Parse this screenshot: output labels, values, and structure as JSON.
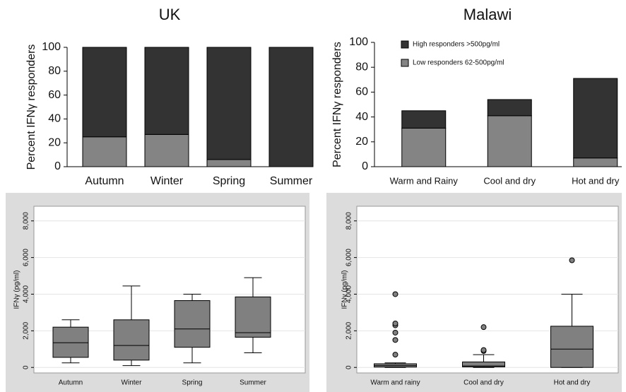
{
  "chart_data": [
    {
      "type": "stacked-bar",
      "title": "UK",
      "y_label": "Percent IFNγ responders",
      "categories": [
        "Autumn",
        "Winter",
        "Spring",
        "Summer"
      ],
      "series": [
        {
          "color": "#848484",
          "values": [
            25,
            27,
            6,
            0
          ]
        },
        {
          "color": "#333333",
          "values": [
            75,
            73,
            94,
            100
          ]
        }
      ],
      "ylim": [
        0,
        100
      ],
      "yticks": [
        0,
        20,
        40,
        60,
        80,
        100
      ]
    },
    {
      "type": "stacked-bar",
      "title": "Malawi",
      "y_label": "Percent IFNγ responders",
      "categories": [
        "Warm and Rainy",
        "Cool and dry",
        "Hot and dry"
      ],
      "series": [
        {
          "name": "Low responders 62-500pg/ml",
          "color": "#848484",
          "values": [
            31,
            41,
            7
          ]
        },
        {
          "name": "High responders >500pg/ml",
          "color": "#333333",
          "values": [
            14,
            13,
            64
          ]
        }
      ],
      "ylim": [
        0,
        100
      ],
      "yticks": [
        0,
        20,
        40,
        60,
        80,
        100
      ],
      "legend": "top-left"
    },
    {
      "type": "box",
      "y_label": "IFNγ (pg/ml)",
      "color": "#808080",
      "grid": true,
      "categories": [
        "Autumn",
        "Winter",
        "Spring",
        "Summer"
      ],
      "boxes": [
        {
          "low": 250,
          "q1": 550,
          "median": 1350,
          "q3": 2200,
          "high": 2600,
          "outliers": []
        },
        {
          "low": 100,
          "q1": 400,
          "median": 1200,
          "q3": 2600,
          "high": 4450,
          "outliers": []
        },
        {
          "low": 250,
          "q1": 1100,
          "median": 2100,
          "q3": 3650,
          "high": 4000,
          "outliers": []
        },
        {
          "low": 800,
          "q1": 1650,
          "median": 1900,
          "q3": 3850,
          "high": 4900,
          "outliers": []
        }
      ],
      "ylim": [
        -300,
        8800
      ],
      "yticks": [
        0,
        {
          "value": 2000,
          "label": "2,000"
        },
        {
          "value": 4000,
          "label": "4,000"
        },
        {
          "value": 6000,
          "label": "6,000"
        },
        {
          "value": 8000,
          "label": "8,000"
        }
      ]
    },
    {
      "type": "box",
      "y_label": "IFNγ (pg/ml)",
      "color": "#808080",
      "grid": true,
      "categories": [
        "Warm and rainy",
        "Cool and dry",
        "Hot and dry"
      ],
      "boxes": [
        {
          "low": 0,
          "q1": 20,
          "median": 100,
          "q3": 200,
          "high": 250,
          "outliers": [
            700,
            1500,
            1900,
            2300,
            2400,
            4000
          ]
        },
        {
          "low": 0,
          "q1": 30,
          "median": 80,
          "q3": 300,
          "high": 700,
          "outliers": [
            900,
            950,
            2200
          ]
        },
        {
          "low": 0,
          "q1": 0,
          "median": 1000,
          "q3": 2250,
          "high": 4000,
          "outliers": [
            5850
          ]
        }
      ],
      "ylim": [
        -300,
        8800
      ],
      "yticks": [
        0,
        {
          "value": 2000,
          "label": "2,000"
        },
        {
          "value": 4000,
          "label": "4,000"
        },
        {
          "value": 6000,
          "label": "6,000"
        },
        {
          "value": 8000,
          "label": "8,000"
        }
      ]
    }
  ]
}
